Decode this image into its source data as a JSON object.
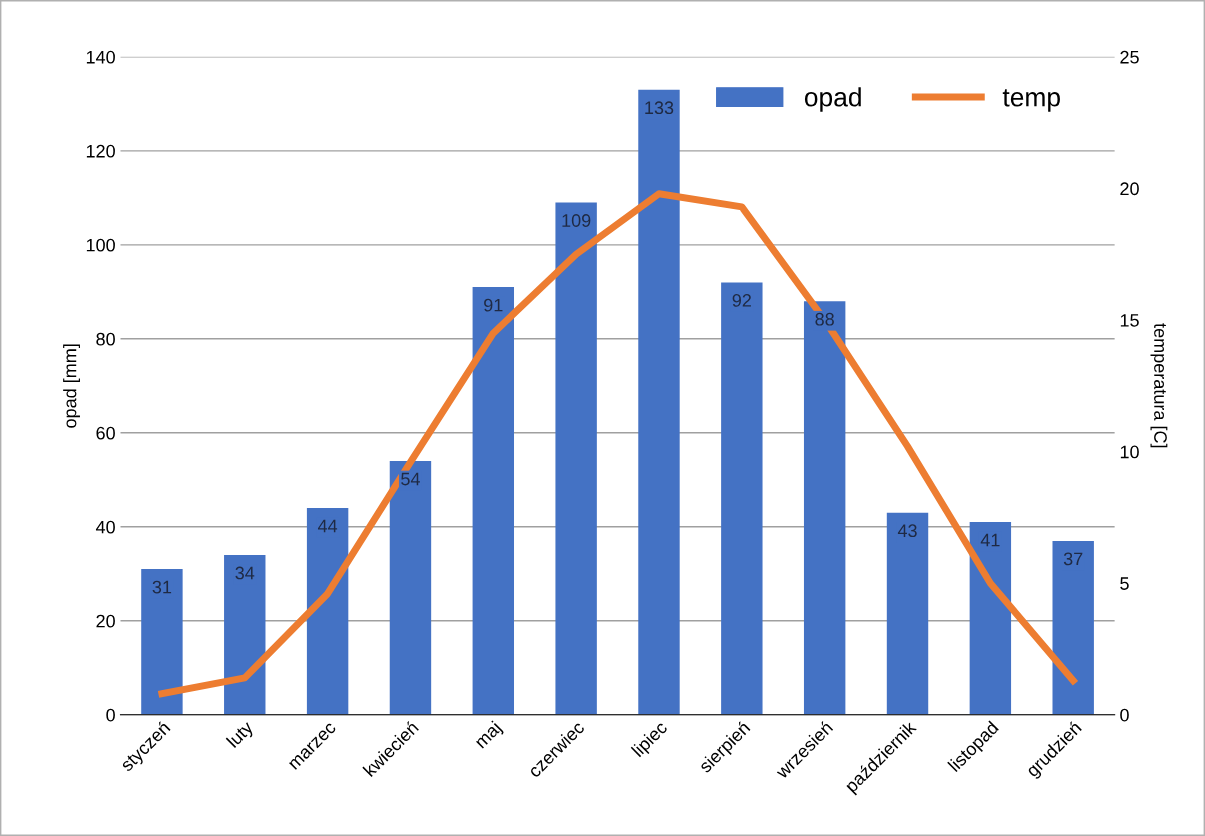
{
  "chart_data": {
    "type": "bar",
    "categories": [
      "styczeń",
      "luty",
      "marzec",
      "kwiecień",
      "maj",
      "czerwiec",
      "lipiec",
      "sierpień",
      "wrzesień",
      "październik",
      "listopad",
      "grudzień"
    ],
    "series": [
      {
        "name": "opad",
        "color": "#4472c4",
        "values": [
          31,
          34,
          44,
          54,
          91,
          109,
          133,
          92,
          88,
          43,
          41,
          37
        ],
        "value_labels": [
          "31",
          "34",
          "44",
          "54",
          "91",
          "109",
          "133",
          "92",
          "88",
          "43",
          "41",
          "37"
        ]
      },
      {
        "name": "temp",
        "type": "line",
        "axis": "y2",
        "color": "#ed7d31",
        "values": [
          0.8,
          1.4,
          4.6,
          9.6,
          14.5,
          17.5,
          19.8,
          19.3,
          15.0,
          10.2,
          5.0,
          1.3
        ]
      }
    ],
    "ylabel": "opad [mm]",
    "y2label": "temperatura [C]",
    "ylim": [
      0,
      140
    ],
    "yticks": [
      0,
      20,
      40,
      60,
      80,
      100,
      120,
      140
    ],
    "y2lim": [
      0,
      25
    ],
    "y2ticks": [
      0,
      5,
      10,
      15,
      20,
      25
    ],
    "grid": "y",
    "legend": "top right",
    "marker": "none",
    "line_style": "solid"
  }
}
